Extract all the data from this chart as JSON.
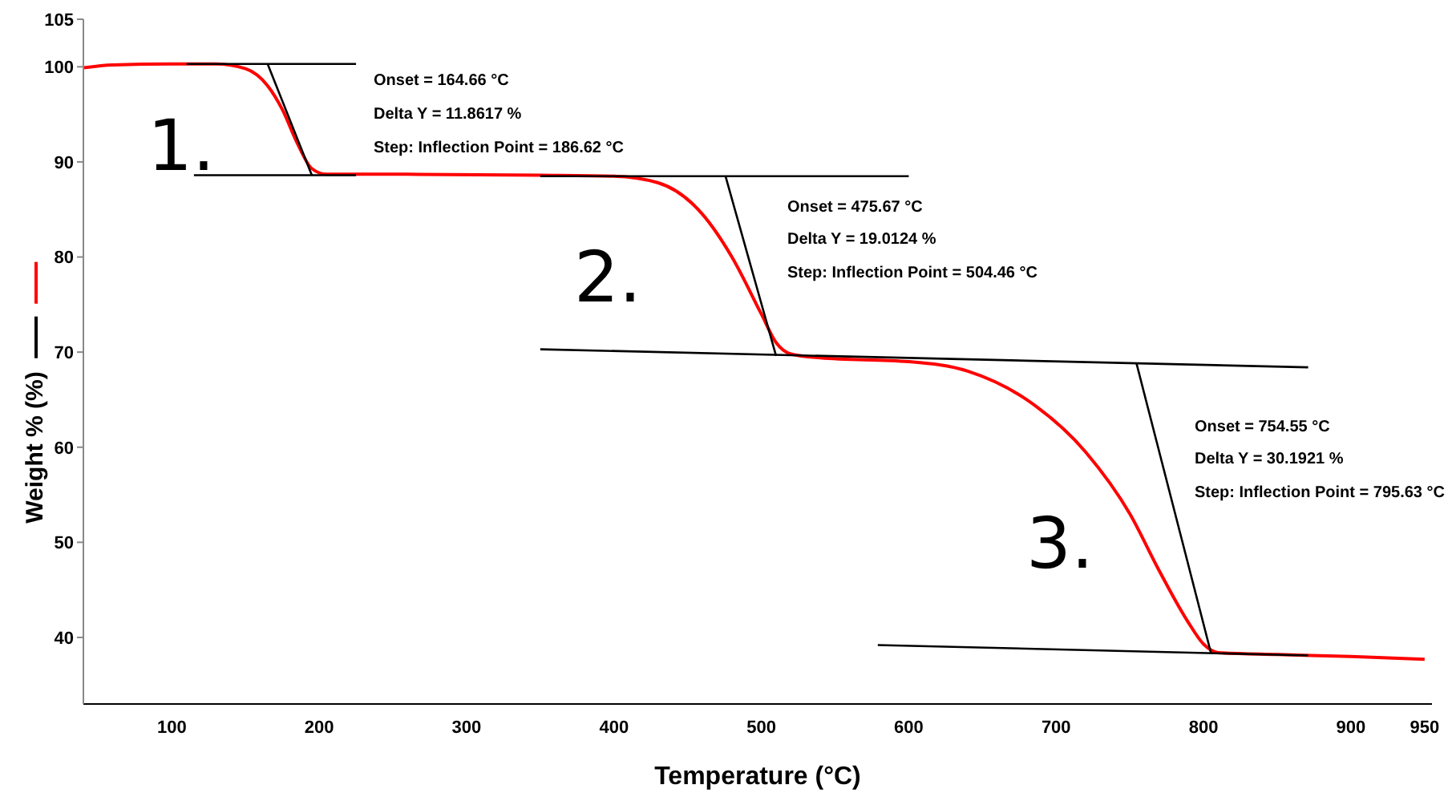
{
  "chart_data": {
    "type": "line",
    "xlabel": "Temperature (°C)",
    "ylabel": "Weight % (%)",
    "xlim": [
      40,
      955
    ],
    "ylim": [
      33,
      105
    ],
    "xticks": [
      100,
      200,
      300,
      400,
      500,
      600,
      700,
      800,
      900,
      950
    ],
    "yticks": [
      40,
      50,
      60,
      70,
      80,
      90,
      100,
      105
    ],
    "grid": false,
    "legend": false,
    "marker": "none",
    "line_style": "solid",
    "series": [
      {
        "color": "#ff0000",
        "x": [
          40,
          60,
          100,
          130,
          150,
          165,
          175,
          185,
          195,
          205,
          250,
          350,
          400,
          430,
          460,
          480,
          500,
          510,
          520,
          540,
          600,
          640,
          680,
          720,
          750,
          770,
          790,
          800,
          810,
          850,
          900,
          950
        ],
        "values": [
          99.9,
          100.2,
          100.3,
          100.3,
          99.8,
          98,
          95.5,
          92,
          89.3,
          88.7,
          88.7,
          88.6,
          88.5,
          87.8,
          84.5,
          80,
          74,
          71,
          69.8,
          69.4,
          69,
          68,
          65,
          59.5,
          53,
          47,
          41.5,
          39.3,
          38.4,
          38.2,
          38,
          37.7
        ]
      },
      {
        "color": "#000000",
        "x": [
          110,
          225
        ],
        "values": [
          100.3,
          100.3
        ]
      },
      {
        "color": "#000000",
        "x": [
          115,
          225
        ],
        "values": [
          88.6,
          88.6
        ]
      },
      {
        "color": "#000000",
        "x": [
          165,
          195
        ],
        "values": [
          100.3,
          88.6
        ]
      },
      {
        "color": "#000000",
        "x": [
          350,
          600
        ],
        "values": [
          88.5,
          88.5
        ]
      },
      {
        "color": "#000000",
        "x": [
          475.67,
          510
        ],
        "values": [
          88.5,
          69.6
        ]
      },
      {
        "color": "#000000",
        "x": [
          350,
          871
        ],
        "values": [
          70.3,
          68.4
        ]
      },
      {
        "color": "#000000",
        "x": [
          754.55,
          805
        ],
        "values": [
          68.8,
          38.4
        ]
      },
      {
        "color": "#000000",
        "x": [
          579,
          871
        ],
        "values": [
          39.2,
          38.1
        ]
      }
    ],
    "annotations": [
      "1.",
      "Onset = 164.66 °C",
      "Delta Y = 11.8617 %",
      "Step: Inflection Point = 186.62 °C",
      "2.",
      "Onset = 475.67 °C",
      "Delta Y = 19.0124 %",
      "Step: Inflection Point = 504.46 °C",
      "3.",
      "Onset = 754.55 °C",
      "Delta Y = 30.1921 %",
      "Step: Inflection Point = 795.63 °C"
    ]
  }
}
